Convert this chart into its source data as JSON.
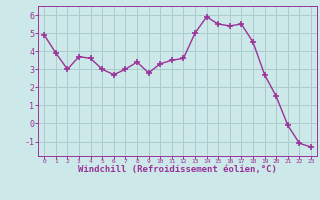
{
  "x": [
    0,
    1,
    2,
    3,
    4,
    5,
    6,
    7,
    8,
    9,
    10,
    11,
    12,
    13,
    14,
    15,
    16,
    17,
    18,
    19,
    20,
    21,
    22,
    23
  ],
  "y": [
    4.9,
    3.9,
    3.0,
    3.7,
    3.6,
    3.0,
    2.7,
    3.0,
    3.4,
    2.8,
    3.3,
    3.5,
    3.6,
    5.0,
    5.9,
    5.5,
    5.4,
    5.5,
    4.5,
    2.7,
    1.5,
    -0.1,
    -1.1,
    -1.3
  ],
  "line_color": "#993399",
  "marker": "+",
  "marker_size": 4,
  "bg_color": "#cce8e8",
  "grid_color": "#aacccc",
  "xlabel": "Windchill (Refroidissement éolien,°C)",
  "xlabel_color": "#993399",
  "tick_color": "#993399",
  "ylim": [
    -1.8,
    6.5
  ],
  "xlim": [
    -0.5,
    23.5
  ],
  "yticks": [
    -1,
    0,
    1,
    2,
    3,
    4,
    5,
    6
  ],
  "xticks": [
    0,
    1,
    2,
    3,
    4,
    5,
    6,
    7,
    8,
    9,
    10,
    11,
    12,
    13,
    14,
    15,
    16,
    17,
    18,
    19,
    20,
    21,
    22,
    23
  ]
}
